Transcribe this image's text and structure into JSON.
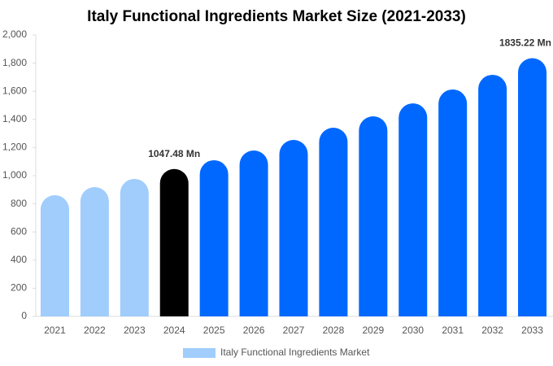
{
  "chart_data": {
    "type": "bar",
    "title": "Italy Functional Ingredients Market Size (2021-2033)",
    "categories": [
      "2021",
      "2022",
      "2023",
      "2024",
      "2025",
      "2026",
      "2027",
      "2028",
      "2029",
      "2030",
      "2031",
      "2032",
      "2033"
    ],
    "series": [
      {
        "name": "Italy Functional Ingredients Market",
        "color": "#a0cdfc",
        "values": [
          861,
          919,
          977,
          1047.48,
          1110,
          1179,
          1254,
          1341,
          1422,
          1514,
          1613,
          1717,
          1835.22
        ],
        "colors": [
          "#a0cdfc",
          "#a0cdfc",
          "#a0cdfc",
          "#000000",
          "#0068ff",
          "#0068ff",
          "#0068ff",
          "#0068ff",
          "#0068ff",
          "#0068ff",
          "#0068ff",
          "#0068ff",
          "#0068ff"
        ],
        "value_labels": [
          null,
          null,
          null,
          "1047.48 Mn",
          null,
          null,
          null,
          null,
          null,
          null,
          null,
          null,
          "1835.22 Mn"
        ]
      }
    ],
    "ylim": [
      0,
      2000
    ],
    "yticks": [
      0,
      200,
      400,
      600,
      800,
      {
        "value": 1000,
        "label": "1,000"
      },
      {
        "value": 1200,
        "label": "1,200"
      },
      {
        "value": 1400,
        "label": "1,400"
      },
      {
        "value": 1600,
        "label": "1,600"
      },
      {
        "value": 1800,
        "label": "1,800"
      },
      {
        "value": 2000,
        "label": "2,000"
      }
    ],
    "grid": false
  }
}
